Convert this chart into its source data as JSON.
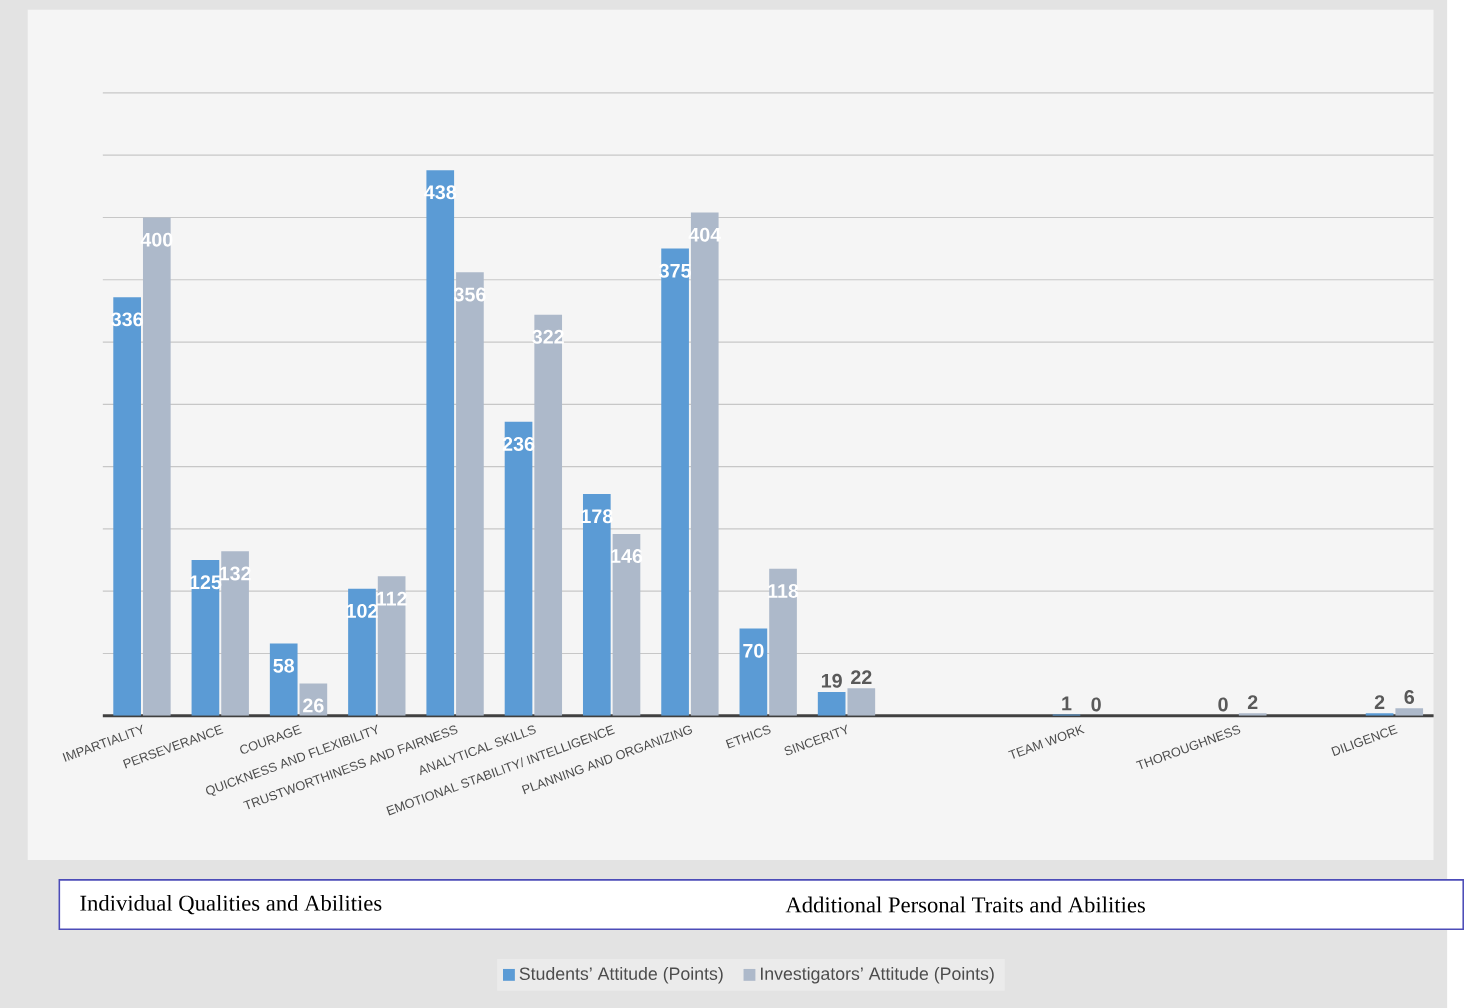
{
  "chart_data": {
    "type": "bar",
    "categories": [
      "IMPARTIALITY",
      "PERSEVERANCE",
      "COURAGE",
      "QUICKNESS AND FLEXIBILITY",
      "TRUSTWORTHINESS AND FAIRNESS",
      "ANALYTICAL SKILLS",
      "EMOTIONAL STABILITY/ INTELLIGENCE",
      "PLANNING AND ORGANIZING",
      "ETHICS",
      "SINCERITY",
      null,
      null,
      "TEAM WORK",
      null,
      "THOROUGHNESS",
      null,
      "DILIGENCE"
    ],
    "series": [
      {
        "name": "Students’ Attitude (Points)",
        "color": "#5b9bd5",
        "values": [
          336,
          125,
          58,
          102,
          438,
          236,
          178,
          375,
          70,
          19,
          null,
          null,
          1,
          null,
          0,
          null,
          2
        ]
      },
      {
        "name": "Investigators’ Attitude (Points)",
        "color": "#adb9ca",
        "values": [
          400,
          132,
          26,
          112,
          356,
          322,
          146,
          404,
          118,
          22,
          null,
          null,
          0,
          null,
          2,
          null,
          6
        ]
      }
    ],
    "ylim": [
      0,
      500
    ],
    "yticks": [
      {
        "value": 0,
        "label": null
      },
      {
        "value": 50,
        "label": null
      },
      {
        "value": 100,
        "label": null
      },
      {
        "value": 150,
        "label": null
      },
      {
        "value": 200,
        "label": null
      },
      {
        "value": 250,
        "label": null
      },
      {
        "value": 300,
        "label": null
      },
      {
        "value": 350,
        "label": null
      },
      {
        "value": 400,
        "label": null
      },
      {
        "value": 450,
        "label": null
      },
      {
        "value": 500,
        "label": null
      }
    ],
    "tick_labels": "x",
    "grid": "y",
    "data_labels": true,
    "legend": "bottom",
    "annotations": [
      "Individual Qualities and Abilities",
      "Additional Personal Traits and Abilities"
    ]
  }
}
